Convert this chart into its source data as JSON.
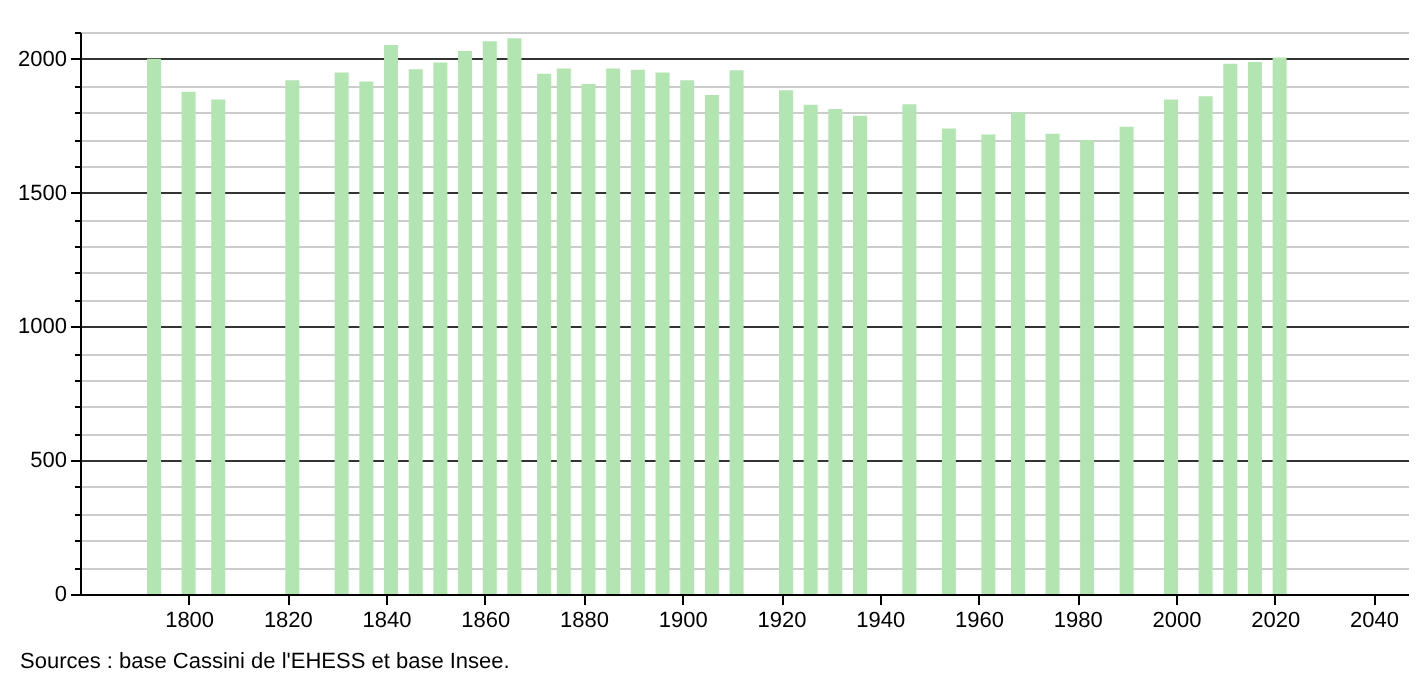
{
  "chart_data": {
    "type": "bar",
    "x": [
      1793,
      1800,
      1806,
      1821,
      1831,
      1836,
      1841,
      1846,
      1851,
      1856,
      1861,
      1866,
      1872,
      1876,
      1881,
      1886,
      1891,
      1896,
      1901,
      1906,
      1911,
      1921,
      1926,
      1931,
      1936,
      1946,
      1954,
      1962,
      1968,
      1975,
      1982,
      1990,
      1999,
      2006,
      2011,
      2016,
      2021
    ],
    "values": [
      2000,
      1877,
      1848,
      1920,
      1949,
      1915,
      2051,
      1961,
      1986,
      2029,
      2065,
      2077,
      1944,
      1964,
      1906,
      1964,
      1959,
      1949,
      1920,
      1865,
      1957,
      1882,
      1828,
      1812,
      1787,
      1830,
      1739,
      1717,
      1800,
      1720,
      1696,
      1746,
      1848,
      1860,
      1981,
      1988,
      2005
    ],
    "color": "#b3e5b3",
    "xlim": [
      1778,
      2047
    ],
    "xticks": [
      1800,
      1820,
      1840,
      1860,
      1880,
      1900,
      1920,
      1940,
      1960,
      1980,
      2000,
      2020,
      2040
    ],
    "ylim": [
      0,
      2100
    ],
    "yticks": [
      0,
      {
        "value": 100,
        "label": null
      },
      {
        "value": 200,
        "label": null
      },
      {
        "value": 300,
        "label": null
      },
      {
        "value": 400,
        "label": null
      },
      500,
      {
        "value": 600,
        "label": null
      },
      {
        "value": 700,
        "label": null
      },
      {
        "value": 800,
        "label": null
      },
      {
        "value": 900,
        "label": null
      },
      1000,
      {
        "value": 1100,
        "label": null
      },
      {
        "value": 1200,
        "label": null
      },
      {
        "value": 1300,
        "label": null
      },
      {
        "value": 1400,
        "label": null
      },
      1500,
      {
        "value": 1600,
        "label": null
      },
      {
        "value": 1700,
        "label": null
      },
      {
        "value": 1800,
        "label": null
      },
      {
        "value": 1900,
        "label": null
      },
      2000,
      {
        "value": 2100,
        "label": null
      }
    ],
    "grid": "y",
    "annotations": [
      "Sources : base Cassini de l'EHESS et base Insee."
    ]
  }
}
